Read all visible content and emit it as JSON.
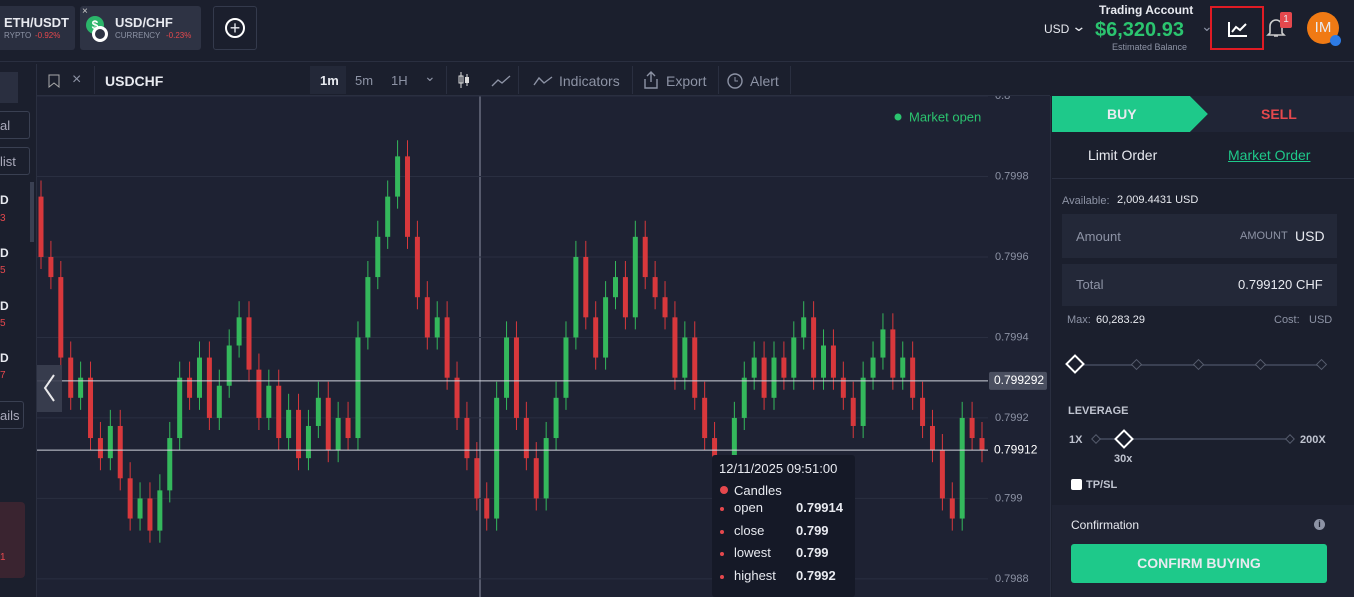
{
  "tabs": [
    {
      "symbol": "ETH/USDT",
      "kind": "RYPTO",
      "change": "-0.92%"
    },
    {
      "symbol": "USD/CHF",
      "kind": "CURRENCY",
      "change": "-0.23%"
    }
  ],
  "header": {
    "account_title": "Trading Account",
    "currency": "USD",
    "balance": "$6,320.93",
    "balance_caption": "Estimated Balance",
    "notifications": "1",
    "avatar": "IM"
  },
  "sidebar": {
    "items": [
      "al",
      "list",
      "ails"
    ],
    "rows": [
      {
        "label": "D",
        "sub": "3"
      },
      {
        "label": "D",
        "sub": "5"
      },
      {
        "label": "D",
        "sub": "5"
      },
      {
        "label": "D",
        "sub": "7"
      }
    ],
    "card": "1"
  },
  "toolbar": {
    "symbol": "USDCHF",
    "intervals": [
      "1m",
      "5m",
      "1H"
    ],
    "indicators": "Indicators",
    "export": "Export",
    "alert": "Alert"
  },
  "chart_data": {
    "type": "candlestick",
    "status": "Market open",
    "ylim": [
      0.798755,
      0.8
    ],
    "yticks": [
      0.8,
      0.7998,
      0.7996,
      0.7994,
      0.7992,
      0.799,
      0.7988
    ],
    "grid": true,
    "up_color": "#34b85c",
    "down_color": "#d8383c",
    "crosshair_price": 0.799292,
    "last_price": 0.79912,
    "open": [
      0.79975,
      0.7996,
      0.79955,
      0.79935,
      0.79925,
      0.7993,
      0.79915,
      0.7991,
      0.79918,
      0.79905,
      0.79895,
      0.799,
      0.79892,
      0.79902,
      0.79915,
      0.7993,
      0.79925,
      0.79935,
      0.7992,
      0.79928,
      0.79938,
      0.79945,
      0.79932,
      0.7992,
      0.79928,
      0.79915,
      0.79922,
      0.7991,
      0.79918,
      0.79925,
      0.79912,
      0.7992,
      0.79915,
      0.7994,
      0.79955,
      0.79965,
      0.79975,
      0.79985,
      0.79965,
      0.7995,
      0.7994,
      0.79945,
      0.7993,
      0.7992,
      0.7991,
      0.799,
      0.79895,
      0.79925,
      0.7994,
      0.7992,
      0.7991,
      0.799,
      0.79915,
      0.79925,
      0.7994,
      0.7996,
      0.79945,
      0.79935,
      0.7995,
      0.79955,
      0.79945,
      0.79965,
      0.79955,
      0.7995,
      0.79945,
      0.7993,
      0.7994,
      0.79925,
      0.79915,
      0.79905,
      0.799,
      0.7992,
      0.7993,
      0.79935,
      0.79925,
      0.79935,
      0.7993,
      0.7994,
      0.79945,
      0.7993,
      0.79938,
      0.7993,
      0.79925,
      0.79918,
      0.7993,
      0.79935,
      0.79942,
      0.7993,
      0.79935,
      0.79925,
      0.79918,
      0.79912,
      0.799,
      0.79895,
      0.7992,
      0.79915
    ],
    "high": [
      0.79979,
      0.79964,
      0.79959,
      0.79939,
      0.79934,
      0.79934,
      0.79919,
      0.79922,
      0.79922,
      0.79909,
      0.79904,
      0.79904,
      0.79906,
      0.79919,
      0.79934,
      0.79934,
      0.79939,
      0.79939,
      0.79932,
      0.79942,
      0.79949,
      0.79949,
      0.79936,
      0.79932,
      0.79932,
      0.79926,
      0.79926,
      0.79922,
      0.79929,
      0.79929,
      0.79924,
      0.79924,
      0.79944,
      0.79959,
      0.79969,
      0.79979,
      0.79989,
      0.79989,
      0.79969,
      0.79954,
      0.79949,
      0.79949,
      0.79934,
      0.79924,
      0.79914,
      0.79904,
      0.79929,
      0.79944,
      0.79944,
      0.79924,
      0.79914,
      0.79919,
      0.79929,
      0.79944,
      0.79964,
      0.79964,
      0.79949,
      0.79954,
      0.79959,
      0.79959,
      0.79969,
      0.79969,
      0.79959,
      0.79954,
      0.79949,
      0.79944,
      0.79944,
      0.79929,
      0.79919,
      0.79909,
      0.79924,
      0.79934,
      0.79939,
      0.79939,
      0.79939,
      0.79939,
      0.79944,
      0.79949,
      0.79949,
      0.79942,
      0.79942,
      0.79934,
      0.79929,
      0.79934,
      0.79939,
      0.79946,
      0.79946,
      0.79939,
      0.79939,
      0.79929,
      0.79922,
      0.79916,
      0.79904,
      0.79924,
      0.79924,
      0.79919
    ],
    "low": [
      0.79957,
      0.79952,
      0.79932,
      0.79922,
      0.79922,
      0.79912,
      0.79907,
      0.79907,
      0.79902,
      0.79892,
      0.79892,
      0.79889,
      0.79889,
      0.79899,
      0.79912,
      0.79922,
      0.79922,
      0.79917,
      0.79917,
      0.79925,
      0.79935,
      0.79929,
      0.79917,
      0.79917,
      0.79912,
      0.79912,
      0.79907,
      0.79907,
      0.79915,
      0.79909,
      0.79909,
      0.79912,
      0.79912,
      0.79937,
      0.79952,
      0.79962,
      0.79972,
      0.79962,
      0.79947,
      0.79937,
      0.79937,
      0.79927,
      0.79917,
      0.79907,
      0.79897,
      0.79892,
      0.79892,
      0.79922,
      0.79917,
      0.79907,
      0.79897,
      0.79897,
      0.79912,
      0.79922,
      0.79937,
      0.79942,
      0.79932,
      0.79932,
      0.79947,
      0.79942,
      0.79942,
      0.79952,
      0.79947,
      0.79942,
      0.79927,
      0.79927,
      0.79922,
      0.79912,
      0.79902,
      0.79897,
      0.79897,
      0.79917,
      0.79927,
      0.79922,
      0.79922,
      0.79927,
      0.79927,
      0.79937,
      0.79927,
      0.79927,
      0.79927,
      0.79922,
      0.79915,
      0.79915,
      0.79927,
      0.79932,
      0.79927,
      0.79927,
      0.79922,
      0.79915,
      0.79909,
      0.79897,
      0.79892,
      0.79892,
      0.79912,
      0.79909
    ],
    "close": [
      0.7996,
      0.79955,
      0.79935,
      0.79925,
      0.7993,
      0.79915,
      0.7991,
      0.79918,
      0.79905,
      0.79895,
      0.799,
      0.79892,
      0.79902,
      0.79915,
      0.7993,
      0.79925,
      0.79935,
      0.7992,
      0.79928,
      0.79938,
      0.79945,
      0.79932,
      0.7992,
      0.79928,
      0.79915,
      0.79922,
      0.7991,
      0.79918,
      0.79925,
      0.79912,
      0.7992,
      0.79915,
      0.7994,
      0.79955,
      0.79965,
      0.79975,
      0.79985,
      0.79965,
      0.7995,
      0.7994,
      0.79945,
      0.7993,
      0.7992,
      0.7991,
      0.799,
      0.79895,
      0.79925,
      0.7994,
      0.7992,
      0.7991,
      0.799,
      0.79915,
      0.79925,
      0.7994,
      0.7996,
      0.79945,
      0.79935,
      0.7995,
      0.79955,
      0.79945,
      0.79965,
      0.79955,
      0.7995,
      0.79945,
      0.7993,
      0.7994,
      0.79925,
      0.79915,
      0.79905,
      0.799,
      0.7992,
      0.7993,
      0.79935,
      0.79925,
      0.79935,
      0.7993,
      0.7994,
      0.79945,
      0.7993,
      0.79938,
      0.7993,
      0.79925,
      0.79918,
      0.7993,
      0.79935,
      0.79942,
      0.7993,
      0.79935,
      0.79925,
      0.79918,
      0.79912,
      0.799,
      0.79895,
      0.7992,
      0.79915,
      0.79912
    ],
    "tooltip": {
      "time": "12/11/2025 09:51:00",
      "series": "Candles",
      "rows": [
        {
          "label": "open",
          "value": 0.79914
        },
        {
          "label": "close",
          "value": 0.799
        },
        {
          "label": "lowest",
          "value": 0.799
        },
        {
          "label": "highest",
          "value": 0.7992
        }
      ]
    }
  },
  "order": {
    "buy": "BUY",
    "sell": "SELL",
    "limit": "Limit Order",
    "market": "Market Order",
    "available_label": "Available:",
    "available": "2,009.4431 USD",
    "amount_label": "Amount",
    "amount_unit_caption": "AMOUNT",
    "amount_unit": "USD",
    "total_label": "Total",
    "total": "0.799120",
    "total_unit": "CHF",
    "max_label": "Max:",
    "max": "60,283.29",
    "cost_label": "Cost:",
    "cost_unit": "USD",
    "leverage_label": "LEVERAGE",
    "leverage_min": "1X",
    "leverage_value": "30x",
    "leverage_max": "200X",
    "tpsl": "TP/SL",
    "confirmation": "Confirmation",
    "confirm_button": "CONFIRM BUYING"
  }
}
